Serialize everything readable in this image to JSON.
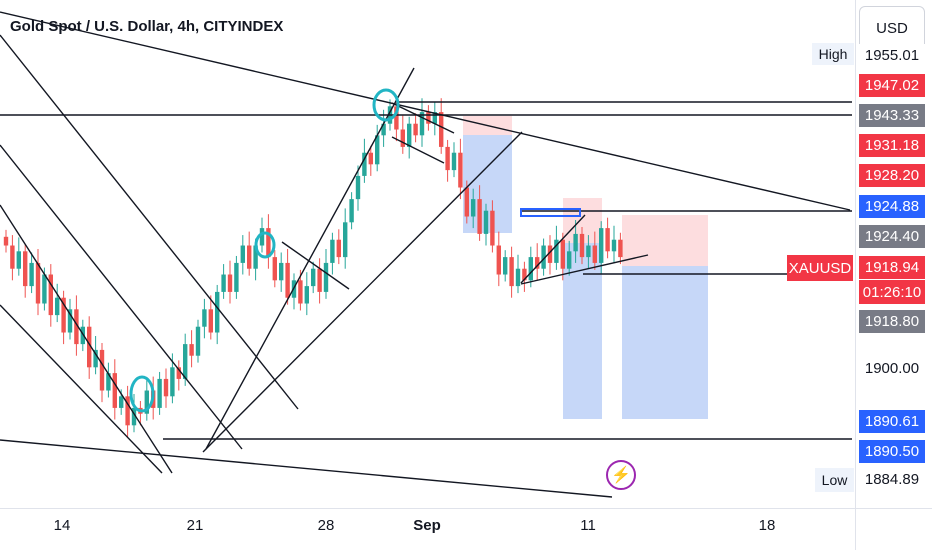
{
  "header": {
    "title": "Gold Spot / U.S. Dollar, 4h, CITYINDEX",
    "currency_label": "USD"
  },
  "price_axis": {
    "labels": [
      {
        "text": "1955.01",
        "price": 1955.01,
        "style": "plain",
        "name": "price-label-high"
      },
      {
        "text": "1947.02",
        "price": 1947.02,
        "style": "red",
        "name": "price-label-1947"
      },
      {
        "text": "1943.33",
        "price": 1943.33,
        "style": "gray",
        "name": "price-label-1943"
      },
      {
        "text": "1931.18",
        "price": 1931.18,
        "style": "red",
        "name": "price-label-1931"
      },
      {
        "text": "1928.20",
        "price": 1928.2,
        "style": "red",
        "name": "price-label-1928"
      },
      {
        "text": "1924.88",
        "price": 1924.88,
        "style": "blue",
        "name": "price-label-1924-88"
      },
      {
        "text": "1924.40",
        "price": 1924.4,
        "style": "gray",
        "name": "price-label-1924-40"
      },
      {
        "text": "1918.94",
        "price": 1918.94,
        "style": "red",
        "name": "price-label-current"
      },
      {
        "text": "1918.80",
        "price": 1918.8,
        "style": "gray",
        "name": "price-label-1918-80"
      },
      {
        "text": "1900.00",
        "price": 1900.0,
        "style": "plain",
        "name": "price-tick-1900"
      },
      {
        "text": "1890.61",
        "price": 1890.61,
        "style": "blue",
        "name": "price-label-1890-61"
      },
      {
        "text": "1890.50",
        "price": 1890.5,
        "style": "blue",
        "name": "price-label-1890-50"
      },
      {
        "text": "1884.89",
        "price": 1884.89,
        "style": "plain",
        "name": "price-label-low"
      }
    ],
    "high_tag": "High",
    "low_tag": "Low",
    "symbol_tag": "XAUUSD",
    "countdown": "01:26:10"
  },
  "time_axis": {
    "labels": [
      {
        "text": "14",
        "bold": false
      },
      {
        "text": "21",
        "bold": false
      },
      {
        "text": "28",
        "bold": false
      },
      {
        "text": "Sep",
        "bold": true
      },
      {
        "text": "11",
        "bold": false
      },
      {
        "text": "18",
        "bold": false
      }
    ]
  },
  "colors": {
    "up": "#26a69a",
    "down": "#ef5350",
    "accent": "#2962ff",
    "line": "#131722",
    "circle": "#22b5c4"
  },
  "icons": {
    "indicator": "lightning-icon"
  },
  "chart_data": {
    "type": "candlestick",
    "title": "Gold Spot / U.S. Dollar, 4h, CITYINDEX",
    "xlabel": "",
    "ylabel": "",
    "x_ticks": [
      "14",
      "21",
      "28",
      "Sep",
      "11",
      "18"
    ],
    "ylim": [
      1877,
      1962
    ],
    "grid": false,
    "series": [
      {
        "close_path": [
          1921,
          1917,
          1920,
          1914,
          1918,
          1911,
          1916,
          1909,
          1912,
          1906,
          1910,
          1904,
          1907,
          1900,
          1903,
          1896,
          1899,
          1893,
          1895,
          1890,
          1893,
          1892,
          1896,
          1893,
          1898,
          1895,
          1900,
          1898,
          1904,
          1902,
          1907,
          1910,
          1906,
          1913,
          1916,
          1913,
          1918,
          1921,
          1917,
          1921,
          1924,
          1919,
          1915,
          1918,
          1912,
          1915,
          1911,
          1914,
          1917,
          1913,
          1918,
          1922,
          1919,
          1925,
          1929,
          1933,
          1937,
          1935,
          1940,
          1942,
          1945,
          1941,
          1938,
          1942,
          1940,
          1944,
          1942,
          1944,
          1938,
          1934,
          1937,
          1931,
          1926,
          1929,
          1923,
          1927,
          1921,
          1916,
          1919,
          1914,
          1917,
          1915,
          1919,
          1917,
          1921,
          1918,
          1922,
          1917,
          1920,
          1923,
          1919,
          1921,
          1918,
          1924,
          1920,
          1922,
          1919
        ]
      }
    ]
  }
}
